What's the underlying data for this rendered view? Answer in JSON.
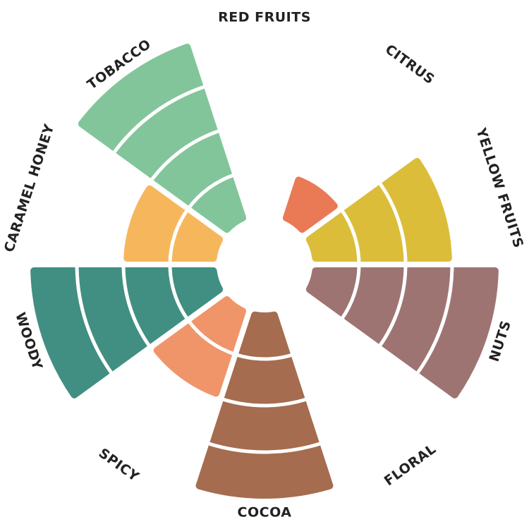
{
  "chart_data": {
    "type": "polar-bar",
    "categories": [
      "RED FRUITS",
      "CITRUS",
      "YELLOW FRUITS",
      "NUTS",
      "FLORAL",
      "COCOA",
      "SPICY",
      "WOODY",
      "CARAMEL HONEY",
      "TOBACCO"
    ],
    "values": [
      0,
      1,
      3,
      4,
      0,
      4,
      2,
      4,
      2,
      4
    ],
    "colors": [
      null,
      "#e97a55",
      "#dbbd3a",
      "#9e7472",
      null,
      "#a56c4f",
      "#f0956a",
      "#418f82",
      "#f6b75c",
      "#83c59b"
    ],
    "rlim": [
      0,
      4
    ]
  }
}
